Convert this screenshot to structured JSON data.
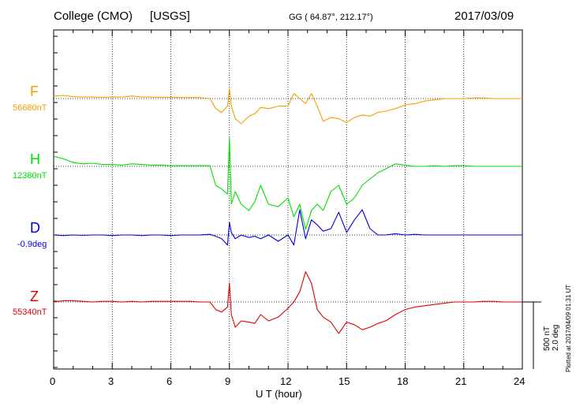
{
  "header": {
    "station": "College (CMO)",
    "source": "[USGS]",
    "coords": "GG ( 64.87°, 212.17°)",
    "date": "2017/03/09"
  },
  "plotted_note": "Plotted at 2017/04/09 01:31  UT",
  "scale": {
    "line1": "500 nT",
    "line2": "2.0 deg"
  },
  "chart_data": {
    "type": "line",
    "xlabel": "U T (hour)",
    "xlim": [
      0,
      24
    ],
    "xticks": [
      "0",
      "3",
      "6",
      "9",
      "12",
      "15",
      "18",
      "21",
      "24"
    ],
    "grid": true,
    "legend": "left labels",
    "x": [
      0,
      0.5,
      1,
      1.5,
      2,
      2.5,
      3,
      3.5,
      4,
      4.5,
      5,
      5.5,
      6,
      6.5,
      7,
      7.5,
      8,
      8.3,
      8.6,
      8.9,
      9.0,
      9.1,
      9.3,
      9.6,
      10,
      10.3,
      10.6,
      11,
      11.5,
      12,
      12.3,
      12.6,
      12.9,
      13.2,
      13.5,
      13.8,
      14.2,
      14.6,
      15,
      15.4,
      15.8,
      16.2,
      16.6,
      17,
      17.5,
      18,
      18.5,
      19,
      19.5,
      20,
      20.5,
      21,
      21.5,
      22,
      22.5,
      23,
      23.5,
      24
    ],
    "series": [
      {
        "name": "F",
        "baseline": "56680nT",
        "color": "#f5a000",
        "values": [
          20,
          25,
          15,
          12,
          12,
          10,
          12,
          12,
          20,
          12,
          12,
          10,
          10,
          8,
          8,
          8,
          0,
          -80,
          -110,
          -60,
          80,
          -60,
          -160,
          -200,
          -140,
          -120,
          -70,
          -80,
          -60,
          -60,
          40,
          0,
          -40,
          40,
          -60,
          -180,
          -150,
          -160,
          -190,
          -150,
          -130,
          -140,
          -110,
          -100,
          -80,
          -50,
          -40,
          -20,
          -10,
          0,
          0,
          0,
          5,
          5,
          0,
          0,
          0,
          0
        ]
      },
      {
        "name": "H",
        "baseline": "12380nT",
        "color": "#00e000",
        "values": [
          80,
          60,
          30,
          20,
          25,
          15,
          15,
          10,
          20,
          15,
          10,
          10,
          5,
          5,
          5,
          5,
          5,
          -150,
          -180,
          -220,
          230,
          -300,
          -200,
          -300,
          -350,
          -280,
          -150,
          -300,
          -320,
          -250,
          -400,
          -300,
          -500,
          -350,
          -300,
          -350,
          -200,
          -150,
          -300,
          -250,
          -150,
          -100,
          -50,
          -20,
          20,
          10,
          0,
          0,
          5,
          0,
          5,
          5,
          0,
          0,
          0,
          0,
          0,
          0
        ]
      },
      {
        "name": "D",
        "baseline": "-0.9deg",
        "color": "#0000e0",
        "values": [
          0,
          -5,
          0,
          -3,
          0,
          0,
          -5,
          0,
          0,
          -5,
          0,
          0,
          -5,
          0,
          0,
          0,
          5,
          -10,
          -30,
          -80,
          100,
          20,
          -30,
          0,
          -20,
          -10,
          -30,
          0,
          -50,
          0,
          -80,
          200,
          -30,
          120,
          80,
          30,
          50,
          180,
          20,
          120,
          200,
          50,
          0,
          0,
          10,
          0,
          5,
          0,
          0,
          0,
          0,
          0,
          0,
          0,
          0,
          0,
          0,
          0
        ]
      },
      {
        "name": "Z",
        "baseline": "55340nT",
        "color": "#e00000",
        "values": [
          0,
          10,
          10,
          5,
          0,
          5,
          5,
          0,
          5,
          0,
          5,
          5,
          5,
          5,
          5,
          0,
          0,
          -60,
          -80,
          -40,
          150,
          -100,
          -200,
          -150,
          -160,
          -170,
          -100,
          -150,
          -120,
          -50,
          0,
          80,
          240,
          150,
          -60,
          -120,
          -160,
          -250,
          -160,
          -180,
          -220,
          -200,
          -170,
          -150,
          -100,
          -60,
          -40,
          -30,
          -20,
          -10,
          0,
          0,
          0,
          5,
          5,
          0,
          0,
          0
        ]
      }
    ]
  }
}
